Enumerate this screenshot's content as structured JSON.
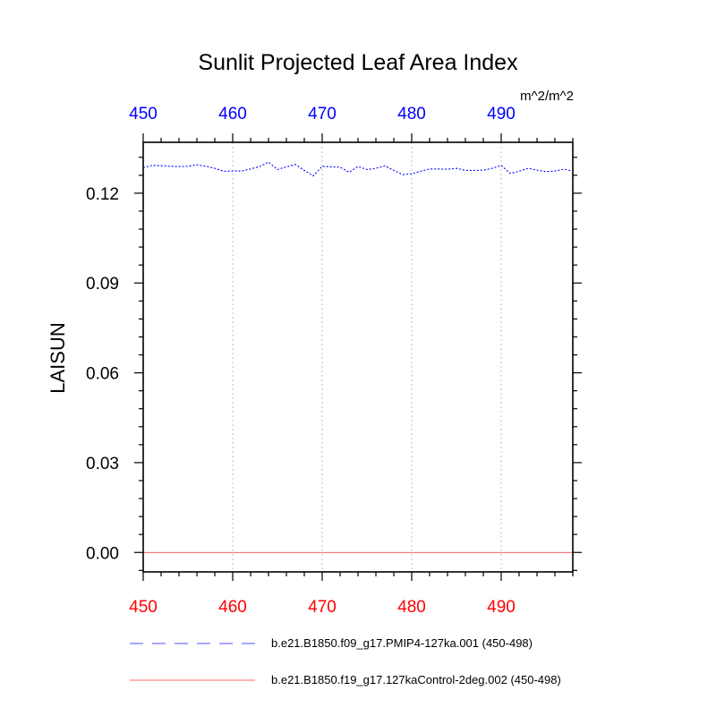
{
  "chart_data": {
    "type": "line",
    "title": "Sunlit Projected Leaf Area Index",
    "units": "m^2/m^2",
    "ylabel": "LAISUN",
    "xlabel": "",
    "xlim": [
      450,
      498
    ],
    "ylim": [
      -0.0065,
      0.137
    ],
    "x_ticks": [
      450,
      460,
      470,
      480,
      490
    ],
    "y_ticks": [
      0.0,
      0.03,
      0.06,
      0.09,
      0.12
    ],
    "y_tick_labels": [
      "0.00",
      "0.03",
      "0.06",
      "0.09",
      "0.12"
    ],
    "x_tick_color_top": "#0000ff",
    "x_tick_color_bottom": "#ff0000",
    "grid": "vertical dotted at major x ticks",
    "series": [
      {
        "name": "b.e21.B1850.f09_g17.PMIP4-127ka.001 (450-498)",
        "color": "#0000ff",
        "dash": "dashed",
        "x": [
          450,
          451,
          452,
          453,
          454,
          455,
          456,
          457,
          458,
          459,
          460,
          461,
          462,
          463,
          464,
          465,
          466,
          467,
          468,
          469,
          470,
          471,
          472,
          473,
          474,
          475,
          476,
          477,
          478,
          479,
          480,
          481,
          482,
          483,
          484,
          485,
          486,
          487,
          488,
          489,
          490,
          491,
          492,
          493,
          494,
          495,
          496,
          497,
          498
        ],
        "values": [
          0.1285,
          0.1293,
          0.1292,
          0.129,
          0.1289,
          0.129,
          0.1295,
          0.129,
          0.1283,
          0.1273,
          0.1274,
          0.1274,
          0.1281,
          0.1289,
          0.1304,
          0.1279,
          0.1288,
          0.1296,
          0.1276,
          0.1258,
          0.129,
          0.1288,
          0.1287,
          0.127,
          0.1289,
          0.1279,
          0.1283,
          0.1292,
          0.1276,
          0.1262,
          0.1265,
          0.1273,
          0.1281,
          0.1281,
          0.128,
          0.1283,
          0.1276,
          0.1276,
          0.1277,
          0.1283,
          0.1293,
          0.1266,
          0.1273,
          0.1283,
          0.1277,
          0.1272,
          0.1274,
          0.128,
          0.1274
        ]
      },
      {
        "name": "b.e21.B1850.f19_g17.127kaControl-2deg.002 (450-498)",
        "color": "#ff0000",
        "dash": "solid",
        "x": [
          450,
          498
        ],
        "values": [
          0.0,
          0.0
        ]
      }
    ],
    "legend_position": "below plot"
  }
}
